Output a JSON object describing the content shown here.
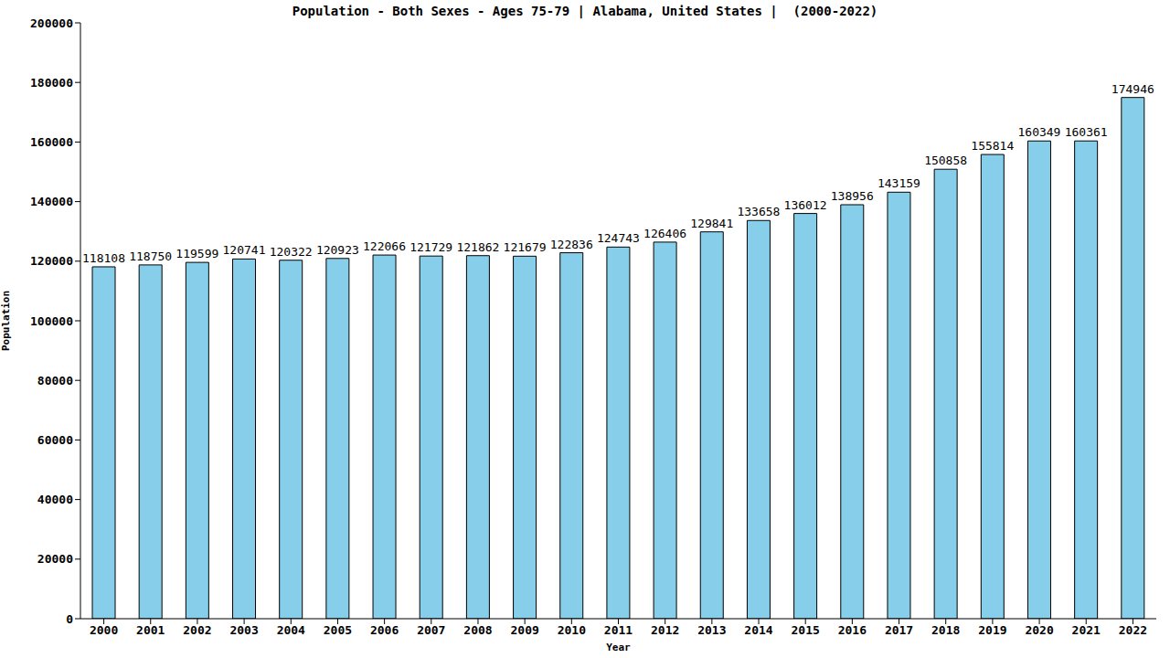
{
  "chart_data": {
    "type": "bar",
    "title": "Population - Both Sexes - Ages 75-79 | Alabama, United States |  (2000-2022)",
    "x_label": "Year",
    "y_label": "Population",
    "categories": [
      "2000",
      "2001",
      "2002",
      "2003",
      "2004",
      "2005",
      "2006",
      "2007",
      "2008",
      "2009",
      "2010",
      "2011",
      "2012",
      "2013",
      "2014",
      "2015",
      "2016",
      "2017",
      "2018",
      "2019",
      "2020",
      "2021",
      "2022"
    ],
    "values": [
      118108,
      118750,
      119599,
      120741,
      120322,
      120923,
      122066,
      121729,
      121862,
      121679,
      122836,
      124743,
      126406,
      129841,
      133658,
      136012,
      138956,
      143159,
      150858,
      155814,
      160349,
      160361,
      174946
    ],
    "color": "#87ceeb",
    "ylim": [
      0,
      200000
    ],
    "yticks": [
      0,
      20000,
      40000,
      60000,
      80000,
      100000,
      120000,
      140000,
      160000,
      180000,
      200000
    ],
    "grid": false,
    "data_labels": true
  }
}
